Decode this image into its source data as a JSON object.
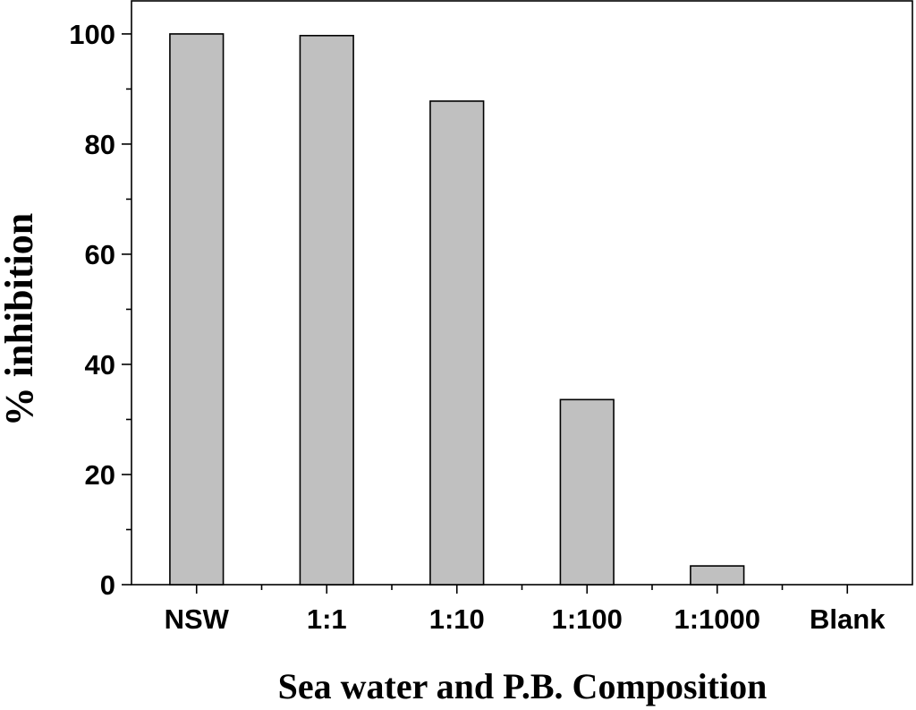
{
  "chart_data": {
    "type": "bar",
    "categories": [
      "NSW",
      "1:1",
      "1:10",
      "1:100",
      "1:1000",
      "Blank"
    ],
    "values": [
      100,
      99.7,
      87.8,
      33.6,
      3.4,
      0
    ],
    "xlabel": "Sea water and P.B. Composition",
    "ylabel": "% inhibition",
    "ylim": [
      0,
      106
    ],
    "yticks": [
      0,
      20,
      40,
      60,
      80,
      100
    ],
    "yminor_step": 10,
    "bar_color": "#c0c0c0",
    "edge_color": "#000000",
    "grid": false,
    "legend": "none"
  }
}
